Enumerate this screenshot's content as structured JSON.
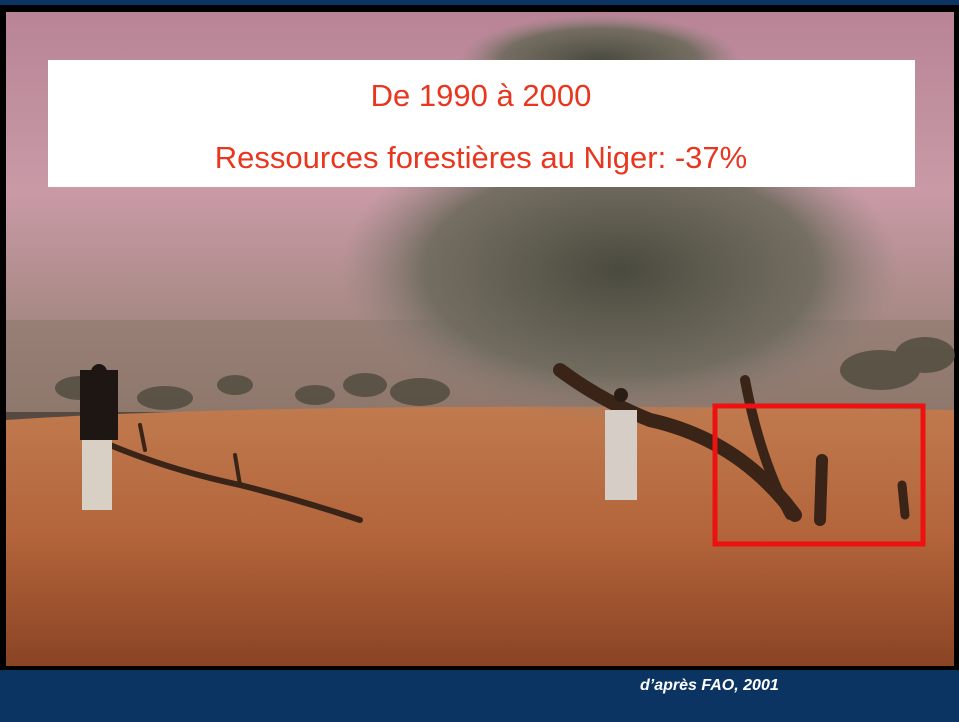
{
  "slide": {
    "headline": "De 1990 à 2000",
    "subheadline": "Ressources forestières au Niger: -37%",
    "source": "d’après FAO, 2001"
  }
}
